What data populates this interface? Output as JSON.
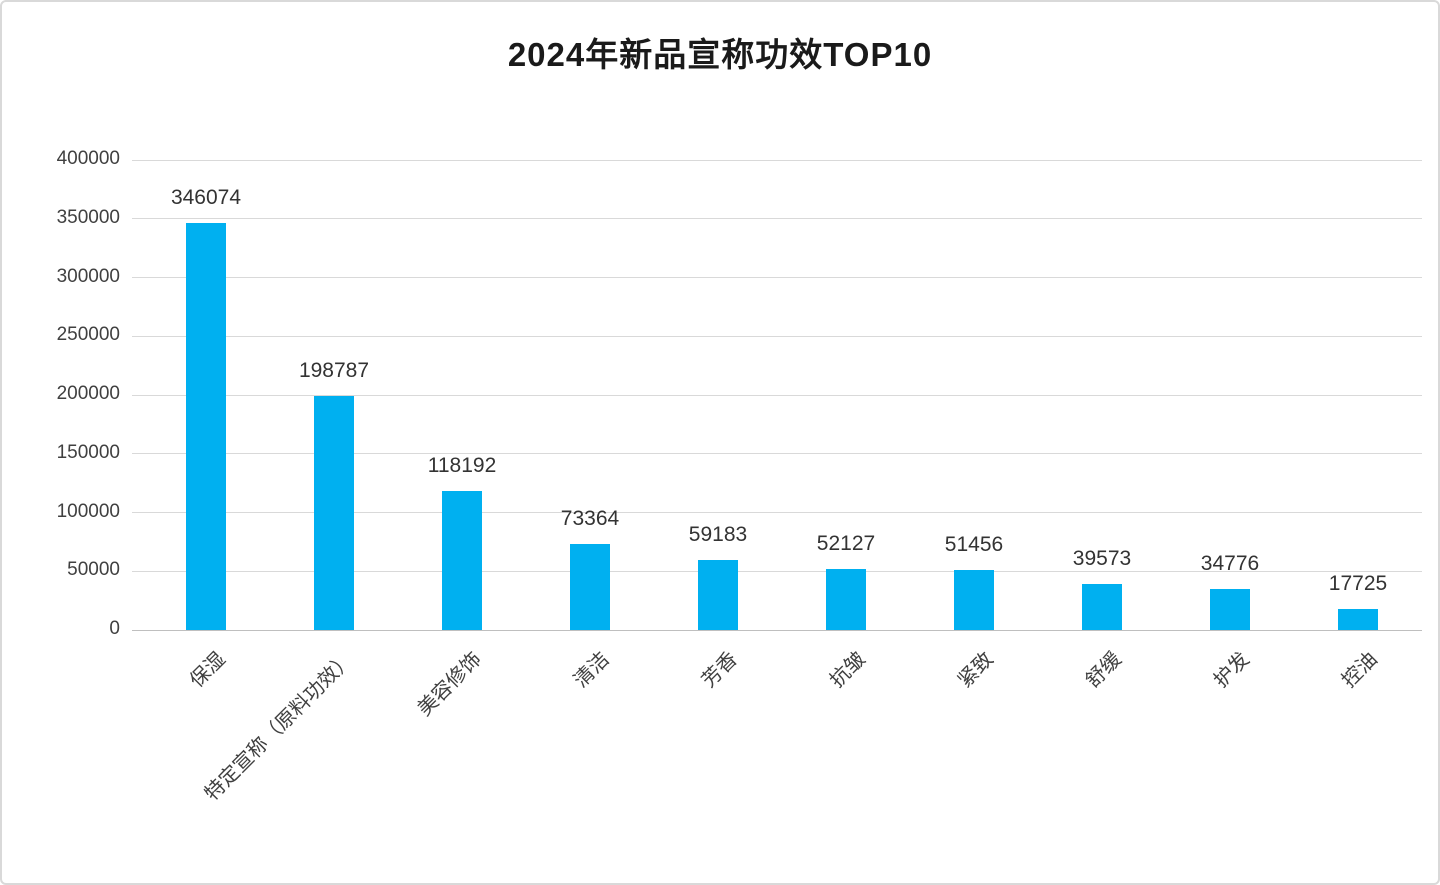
{
  "page": {
    "background": "#FFFFFF",
    "border_color": "#D9D9D9"
  },
  "chart_data": {
    "type": "bar",
    "title": "2024年新品宣称功效TOP10",
    "categories": [
      "保湿",
      "特定宣称（原料功效）",
      "美容修饰",
      "清洁",
      "芳香",
      "抗皱",
      "紧致",
      "舒缓",
      "护发",
      "控油"
    ],
    "values": [
      346074,
      198787,
      118192,
      73364,
      59183,
      52127,
      51456,
      39573,
      34776,
      17725
    ],
    "data_labels": [
      "346074",
      "198787",
      "118192",
      "73364",
      "59183",
      "52127",
      "51456",
      "39573",
      "34776",
      "17725"
    ],
    "xlabel": "",
    "ylabel": "",
    "ylim": [
      0,
      400000
    ],
    "y_tick_interval": 50000,
    "y_tick_labels": [
      "0",
      "50000",
      "100000",
      "150000",
      "200000",
      "250000",
      "300000",
      "350000",
      "400000"
    ],
    "grid": "horizontal",
    "legend": "none",
    "bar_color": "#00B0F0",
    "gridline_color": "#D9D9D9",
    "axis_color": "#BFBFBF",
    "text_color": "#404040",
    "title_color": "#1A1A1A"
  }
}
